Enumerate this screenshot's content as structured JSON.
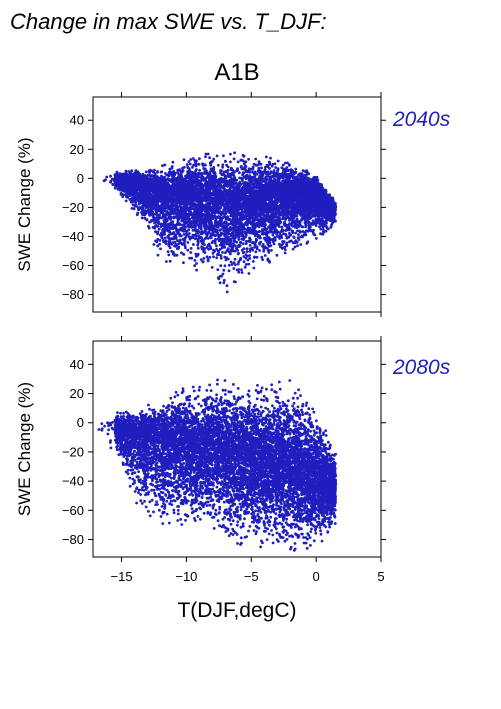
{
  "figure": {
    "title": "Change in max SWE vs. T_DJF:",
    "scenario": "A1B",
    "series_color": "#1f1fbf"
  },
  "chart_data": [
    {
      "type": "scatter",
      "period_label": "2040s",
      "ylabel": "SWE Change (%)",
      "xlim": [
        -17.2,
        5.0
      ],
      "ylim": [
        -92,
        56
      ],
      "yticks": [
        40,
        20,
        0,
        -20,
        -40,
        -60,
        -80
      ],
      "ytick_labels": [
        "40",
        "20",
        "0",
        "−20",
        "−40",
        "−60",
        "−80"
      ],
      "point_count": 8000,
      "cloud": {
        "x_range": [
          -17,
          1.5
        ],
        "upper_envelope": [
          [
            -17,
            4
          ],
          [
            -14,
            6
          ],
          [
            -12,
            9
          ],
          [
            -10,
            14
          ],
          [
            -8,
            19
          ],
          [
            -6,
            18
          ],
          [
            -4,
            15
          ],
          [
            -2,
            13
          ],
          [
            0,
            2
          ],
          [
            1.5,
            -16
          ]
        ],
        "lower_envelope": [
          [
            -17,
            -2
          ],
          [
            -15,
            -12
          ],
          [
            -13,
            -35
          ],
          [
            -12,
            -58
          ],
          [
            -10,
            -62
          ],
          [
            -8,
            -65
          ],
          [
            -7,
            -82
          ],
          [
            -6,
            -70
          ],
          [
            -4,
            -60
          ],
          [
            -2,
            -52
          ],
          [
            0,
            -42
          ],
          [
            1.5,
            -32
          ]
        ],
        "center": [
          [
            -17,
            1
          ],
          [
            -14,
            -4
          ],
          [
            -12,
            -10
          ],
          [
            -10,
            -14
          ],
          [
            -8,
            -16
          ],
          [
            -6,
            -18
          ],
          [
            -4,
            -15
          ],
          [
            -2,
            -10
          ],
          [
            0,
            -10
          ],
          [
            1.5,
            -20
          ]
        ]
      }
    },
    {
      "type": "scatter",
      "period_label": "2080s",
      "ylabel": "SWE Change (%)",
      "xlabel": "T(DJF,degC)",
      "xlim": [
        -17.2,
        5.0
      ],
      "ylim": [
        -92,
        56
      ],
      "yticks": [
        40,
        20,
        0,
        -20,
        -40,
        -60,
        -80
      ],
      "ytick_labels": [
        "40",
        "20",
        "0",
        "−20",
        "−40",
        "−60",
        "−80"
      ],
      "xticks": [
        -15,
        -10,
        -5,
        0,
        5
      ],
      "xtick_labels": [
        "−15",
        "−10",
        "−5",
        "0",
        "5"
      ],
      "point_count": 9000,
      "cloud": {
        "x_range": [
          -17,
          1.5
        ],
        "upper_envelope": [
          [
            -17,
            6
          ],
          [
            -14,
            9
          ],
          [
            -12,
            16
          ],
          [
            -10,
            25
          ],
          [
            -8,
            30
          ],
          [
            -6,
            28
          ],
          [
            -4,
            26
          ],
          [
            -2,
            30
          ],
          [
            0,
            10
          ],
          [
            1.5,
            -20
          ]
        ],
        "lower_envelope": [
          [
            -17,
            -8
          ],
          [
            -15,
            -25
          ],
          [
            -14,
            -55
          ],
          [
            -12,
            -70
          ],
          [
            -10,
            -72
          ],
          [
            -8,
            -75
          ],
          [
            -6,
            -86
          ],
          [
            -4,
            -85
          ],
          [
            -2,
            -88
          ],
          [
            0,
            -88
          ],
          [
            1.5,
            -70
          ]
        ],
        "center": [
          [
            -17,
            0
          ],
          [
            -14,
            -8
          ],
          [
            -12,
            -14
          ],
          [
            -10,
            -16
          ],
          [
            -8,
            -18
          ],
          [
            -6,
            -22
          ],
          [
            -4,
            -28
          ],
          [
            -2,
            -32
          ],
          [
            0,
            -40
          ],
          [
            1.5,
            -45
          ]
        ]
      }
    }
  ]
}
